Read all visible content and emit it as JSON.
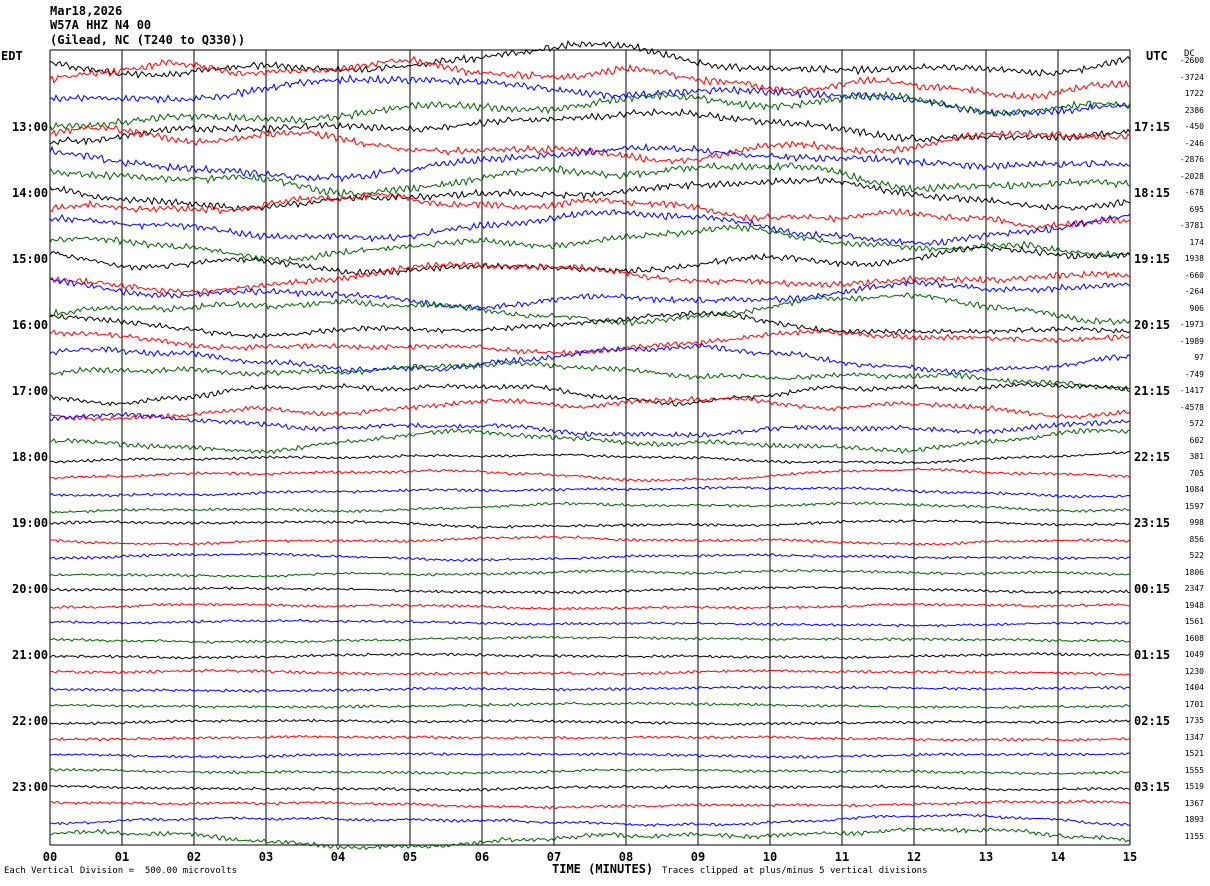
{
  "header": {
    "date": "Mar18,2026",
    "station": "W57A HHZ N4 00",
    "location": "(Gilead, NC (T240 to Q330))"
  },
  "left_axis_label": "EDT",
  "right_axis_label": "UTC",
  "dc_label": "DC",
  "footer": {
    "scale_note": "Each Vertical Division =  500.00 microvolts",
    "x_title": "TIME (MINUTES)",
    "clip_note": "Traces clipped at plus/minus 5 vertical divisions"
  },
  "colors": {
    "trace_cycle": [
      "#000000",
      "#ff0000",
      "#0000ff",
      "#006400"
    ],
    "grid": "#000000",
    "background": "#ffffff"
  },
  "chart_data": {
    "type": "line",
    "title": "",
    "xlabel": "TIME (MINUTES)",
    "ylabel": "",
    "xlim": [
      0,
      15
    ],
    "x_ticks": [
      "00",
      "01",
      "02",
      "03",
      "04",
      "05",
      "06",
      "07",
      "08",
      "09",
      "10",
      "11",
      "12",
      "13",
      "14",
      "15"
    ],
    "rows_per_hour": 4,
    "row_count": 48,
    "left_hour_labels": [
      "13:00",
      "14:00",
      "15:00",
      "16:00",
      "17:00",
      "18:00",
      "19:00",
      "20:00",
      "21:00",
      "22:00",
      "23:00"
    ],
    "right_hour_labels": [
      "17:15",
      "18:15",
      "19:15",
      "20:15",
      "21:15",
      "22:15",
      "23:15",
      "00:15",
      "01:15",
      "02:15",
      "03:15"
    ],
    "dc_offsets": [
      "-2600",
      "-3724",
      "1722",
      "2386",
      "-450",
      "-246",
      "-2876",
      "-2028",
      "-678",
      "695",
      "-3781",
      "174",
      "1938",
      "-660",
      "-264",
      "906",
      "-1973",
      "-1989",
      "97",
      "-749",
      "-1417",
      "-4578",
      "572",
      "602",
      "381",
      "705",
      "1084",
      "1597",
      "998",
      "856",
      "522",
      "1806",
      "2347",
      "1948",
      "1561",
      "1608",
      "1049",
      "1230",
      "1404",
      "1701",
      "1735",
      "1347",
      "1521",
      "1555",
      "1519",
      "1367",
      "1893",
      "1155"
    ],
    "amplitude_envelope_divisions": [
      3.5,
      3.5,
      3.5,
      3.5,
      3.2,
      3.2,
      3.2,
      3.2,
      3.0,
      3.0,
      3.0,
      3.0,
      2.8,
      2.8,
      2.8,
      2.8,
      2.4,
      2.4,
      2.4,
      2.4,
      2.2,
      2.2,
      2.2,
      2.2,
      1.2,
      1.2,
      1.1,
      1.0,
      0.7,
      0.7,
      0.6,
      0.6,
      0.5,
      0.5,
      0.5,
      0.5,
      0.4,
      0.4,
      0.4,
      0.4,
      0.4,
      0.4,
      0.4,
      0.4,
      0.4,
      0.6,
      1.2,
      2.0
    ],
    "clip_divisions": 5,
    "grid": true
  }
}
